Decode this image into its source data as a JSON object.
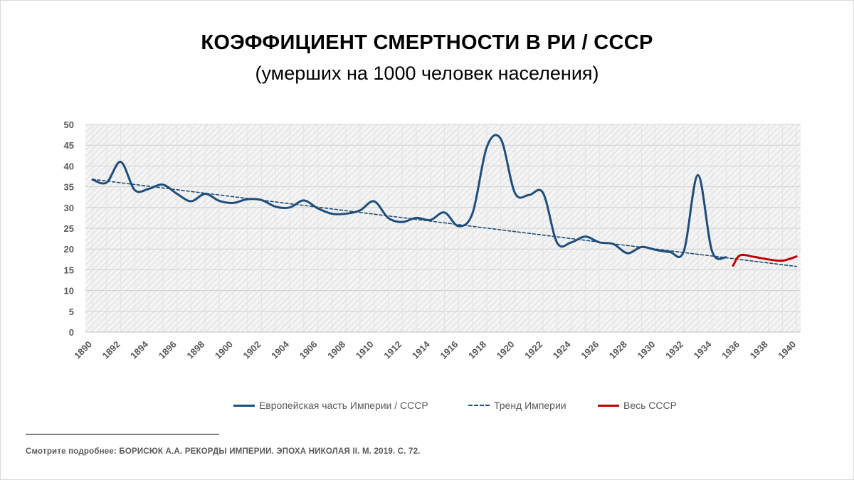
{
  "title": "КОЭФФИЦИЕНТ СМЕРТНОСТИ В РИ / СССР",
  "subtitle": "(умерших на 1000 человек населения)",
  "footnote": "Смотрите подробнее: БОРИСЮК А.А. РЕКОРДЫ ИМПЕРИИ. ЭПОХА НИКОЛАЯ II. М. 2019. С. 72.",
  "chart_data": {
    "type": "line",
    "title": "КОЭФФИЦИЕНТ СМЕРТНОСТИ В РИ / СССР",
    "subtitle": "(умерших на 1000 человек населения)",
    "xlabel": "",
    "ylabel": "",
    "xlim": [
      1890,
      1940
    ],
    "ylim": [
      0,
      50
    ],
    "y_ticks": [
      0,
      5,
      10,
      15,
      20,
      25,
      30,
      35,
      40,
      45,
      50
    ],
    "x_ticks": [
      1890,
      1892,
      1894,
      1896,
      1898,
      1900,
      1902,
      1904,
      1906,
      1908,
      1910,
      1912,
      1914,
      1916,
      1918,
      1920,
      1922,
      1924,
      1926,
      1928,
      1930,
      1932,
      1934,
      1936,
      1938,
      1940
    ],
    "grid": true,
    "legend_position": "bottom",
    "series": [
      {
        "name": "Европейская часть Империи / СССР",
        "style": "solid",
        "color": "#1f4e79",
        "x": [
          1890,
          1891,
          1892,
          1893,
          1894,
          1895,
          1896,
          1897,
          1898,
          1899,
          1900,
          1901,
          1902,
          1903,
          1904,
          1905,
          1906,
          1907,
          1908,
          1909,
          1910,
          1911,
          1912,
          1913,
          1914,
          1915,
          1916,
          1917,
          1918,
          1919,
          1920,
          1921,
          1922,
          1923,
          1924,
          1925,
          1926,
          1927,
          1928,
          1929,
          1930,
          1931,
          1932,
          1933,
          1934,
          1935
        ],
        "values": [
          36.7,
          36.0,
          41.0,
          34.2,
          34.5,
          35.5,
          33.3,
          31.5,
          33.3,
          31.6,
          31.1,
          32.0,
          31.8,
          30.2,
          30.0,
          31.7,
          29.8,
          28.5,
          28.5,
          29.3,
          31.5,
          27.5,
          26.5,
          27.5,
          27.0,
          28.8,
          25.5,
          28.7,
          44.5,
          46.5,
          33.5,
          33.0,
          33.5,
          21.5,
          21.6,
          23.0,
          21.6,
          21.2,
          19.0,
          20.5,
          19.8,
          19.3,
          19.5,
          37.8,
          19.5,
          18.0
        ]
      },
      {
        "name": "Тренд Империи",
        "style": "dashed",
        "color": "#1f4e79",
        "x": [
          1890,
          1940
        ],
        "values": [
          36.8,
          15.8
        ]
      },
      {
        "name": "Весь СССР",
        "style": "solid",
        "color": "#c00000",
        "x": [
          1935.5,
          1936,
          1937,
          1938,
          1939,
          1940
        ],
        "values": [
          16.0,
          18.5,
          18.1,
          17.5,
          17.2,
          18.2
        ]
      }
    ]
  }
}
